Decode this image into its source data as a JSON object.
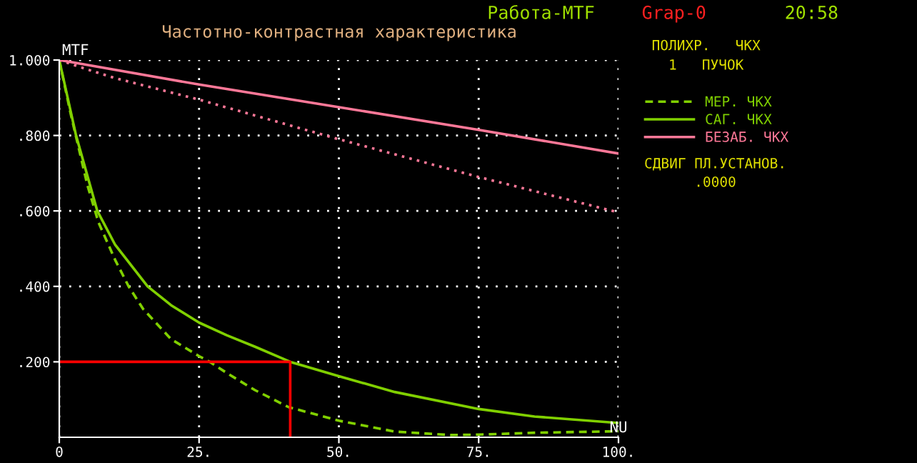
{
  "chart_data": {
    "type": "line",
    "title": "Частотно-контрастная характеристика",
    "xlabel": "NU",
    "ylabel": "MTF",
    "annotations": [
      "Работа-MTF",
      "Grap-0",
      "20:58",
      "ПОЛИХР.   ЧКХ",
      "1   ПУЧОК",
      "СДВИГ ПЛ.УСТАНОВ.",
      ".0000"
    ],
    "xlim": [
      0,
      100
    ],
    "ylim": [
      0,
      1.0
    ],
    "xticks": [
      0,
      {
        "value": 25,
        "label": "25."
      },
      {
        "value": 50,
        "label": "50."
      },
      {
        "value": 75,
        "label": "75."
      },
      {
        "value": 100,
        "label": "100."
      }
    ],
    "yticks": [
      {
        "value": 0.2,
        "label": ".200"
      },
      {
        "value": 0.4,
        "label": ".400"
      },
      {
        "value": 0.6,
        "label": ".600"
      },
      {
        "value": 0.8,
        "label": ".800"
      },
      {
        "value": 1.0,
        "label": "1.000"
      }
    ],
    "grid": true,
    "legend": "right",
    "series": [
      {
        "name": "МЕР. ЧКХ",
        "color": "#80d000",
        "line_style": "dashed",
        "x": [
          0,
          2,
          5,
          7,
          10,
          12.4,
          15,
          20,
          25,
          26.9,
          30,
          35,
          41,
          50,
          60,
          70,
          75,
          85,
          100
        ],
        "values": [
          1.0,
          0.86,
          0.67,
          0.57,
          0.47,
          0.4,
          0.34,
          0.26,
          0.215,
          0.2,
          0.17,
          0.125,
          0.08,
          0.044,
          0.015,
          0.006,
          0.007,
          0.012,
          0.016
        ]
      },
      {
        "name": "САГ. ЧКХ",
        "color": "#80d000",
        "line_style": "solid",
        "x": [
          0,
          3,
          6.8,
          10,
          15.8,
          20,
          25,
          30,
          35,
          41.3,
          50,
          60,
          75,
          85,
          100
        ],
        "values": [
          1.0,
          0.8,
          0.6,
          0.51,
          0.4,
          0.35,
          0.304,
          0.27,
          0.24,
          0.2,
          0.162,
          0.12,
          0.075,
          0.055,
          0.038
        ]
      },
      {
        "name": "БЕЗАБ. ЧКХ",
        "color": "#ff7898",
        "line_style": "solid",
        "x": [
          0,
          25,
          50,
          75,
          100
        ],
        "values": [
          1.0,
          0.935,
          0.875,
          0.815,
          0.752
        ]
      },
      {
        "color": "#ff7898",
        "line_style": "dotted",
        "x": [
          0,
          5,
          10,
          25,
          50,
          75,
          100
        ],
        "values": [
          1.0,
          0.975,
          0.952,
          0.895,
          0.79,
          0.69,
          0.596
        ]
      },
      {
        "color": "#ff0000",
        "line_style": "solid",
        "x": [
          0,
          41.3,
          41.3
        ],
        "values": [
          0.2,
          0.2,
          0
        ]
      }
    ]
  }
}
